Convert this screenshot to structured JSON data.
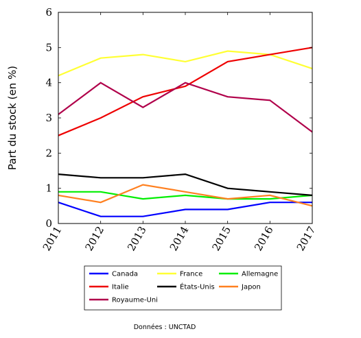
{
  "chart_data": {
    "type": "line",
    "title": "",
    "xlabel": "",
    "ylabel": "Part du stock (en %)",
    "x": [
      "2011",
      "2012",
      "2013",
      "2014",
      "2015",
      "2016",
      "2017"
    ],
    "ylim": [
      0,
      6
    ],
    "yticks": [
      "0",
      "1",
      "2",
      "3",
      "4",
      "5",
      "6"
    ],
    "grid": false,
    "legend_position": "bottom-outside",
    "series": [
      {
        "name": "Canada",
        "color": "#0000ff",
        "values": [
          0.6,
          0.2,
          0.2,
          0.4,
          0.4,
          0.6,
          0.6
        ]
      },
      {
        "name": "France",
        "color": "#ffff33",
        "values": [
          4.2,
          4.7,
          4.8,
          4.6,
          4.9,
          4.8,
          4.4
        ]
      },
      {
        "name": "Allemagne",
        "color": "#00ee00",
        "values": [
          0.9,
          0.9,
          0.7,
          0.8,
          0.7,
          0.7,
          0.8
        ]
      },
      {
        "name": "Italie",
        "color": "#ee0000",
        "values": [
          2.5,
          3.0,
          3.6,
          3.9,
          4.6,
          4.8,
          5.0
        ]
      },
      {
        "name": "États-Unis",
        "color": "#000000",
        "values": [
          1.4,
          1.3,
          1.3,
          1.4,
          1.0,
          0.9,
          0.8
        ]
      },
      {
        "name": "Japon",
        "color": "#ff8020",
        "values": [
          0.8,
          0.6,
          1.1,
          0.9,
          0.7,
          0.8,
          0.5
        ]
      },
      {
        "name": "Royaume-Uni",
        "color": "#b0004a",
        "values": [
          3.1,
          4.0,
          3.3,
          4.0,
          3.6,
          3.5,
          2.6
        ]
      }
    ],
    "source": "Données : UNCTAD"
  }
}
